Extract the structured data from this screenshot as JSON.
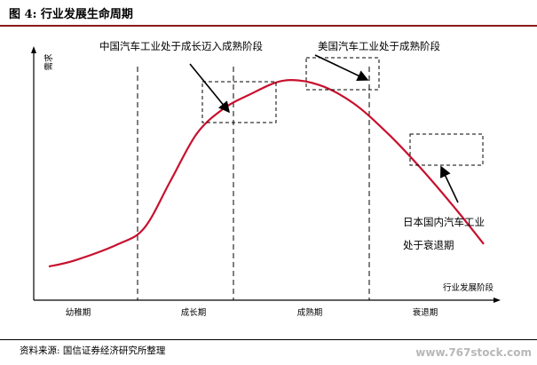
{
  "header": {
    "title": "图 4:  行业发展生命周期"
  },
  "chart_data": {
    "type": "line",
    "title": "",
    "ylabel": "需求",
    "xlabel": "行业发展阶段",
    "stages": [
      "幼稚期",
      "成长期",
      "成熟期",
      "衰退期"
    ],
    "annotations": {
      "china": "中国汽车工业处于成长迈入成熟阶段",
      "usa": "美国汽车工业处于成熟阶段",
      "japan_line1": "日本国内汽车工业",
      "japan_line2": "处于衰退期"
    },
    "series": [
      {
        "values": [
          [
            0.0,
            0.03
          ],
          [
            0.06,
            0.06
          ],
          [
            0.16,
            0.14
          ],
          [
            0.22,
            0.22
          ],
          [
            0.28,
            0.45
          ],
          [
            0.34,
            0.68
          ],
          [
            0.4,
            0.8
          ],
          [
            0.46,
            0.87
          ],
          [
            0.54,
            0.94
          ],
          [
            0.62,
            0.92
          ],
          [
            0.7,
            0.83
          ],
          [
            0.78,
            0.68
          ],
          [
            0.86,
            0.5
          ],
          [
            0.94,
            0.3
          ],
          [
            1.0,
            0.14
          ]
        ]
      }
    ],
    "colors": {
      "curve": "#c8102e",
      "axis": "#000000"
    }
  },
  "source": {
    "text": "资料来源:  国信证券经济研究所整理"
  },
  "watermark": {
    "text": "www.767stock.com"
  }
}
